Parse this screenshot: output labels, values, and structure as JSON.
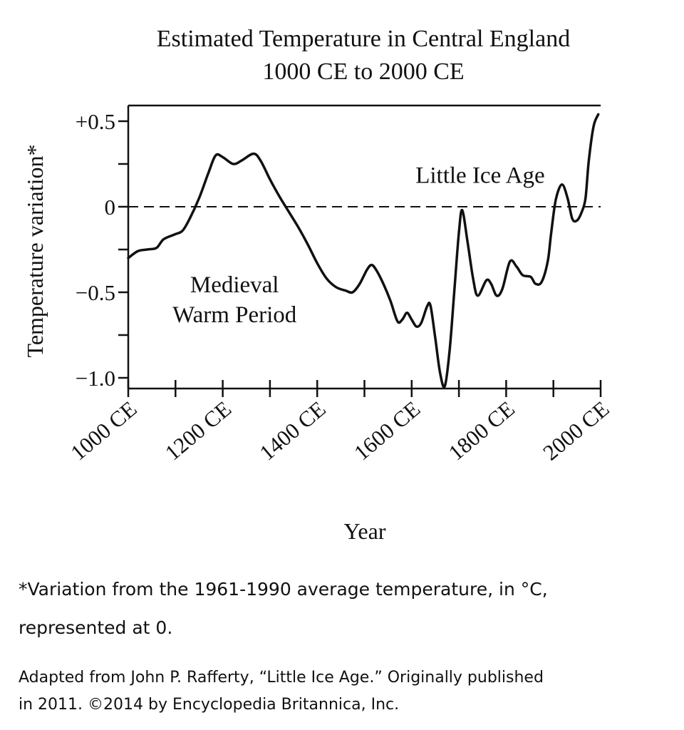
{
  "chart_data": {
    "type": "line",
    "title": "Estimated Temperature in Central England",
    "subtitle": "1000 CE to 2000 CE",
    "xlabel": "Year",
    "ylabel": "Temperature variation*",
    "xlim": [
      1000,
      2000
    ],
    "ylim": [
      -1.05,
      0.55
    ],
    "x_ticks": [
      1000,
      1200,
      1400,
      1600,
      1800,
      2000
    ],
    "x_tick_labels": [
      "1000 CE",
      "1200 CE",
      "1400 CE",
      "1600 CE",
      "1800 CE",
      "2000 CE"
    ],
    "y_ticks": [
      0.5,
      0,
      -0.5,
      -1.0
    ],
    "y_tick_labels": [
      "+0.5",
      "0",
      "−0.5",
      "−1.0"
    ],
    "reference_line": {
      "y": 0,
      "style": "dashed"
    },
    "annotations": [
      {
        "lines": [
          "Medieval",
          "Warm Period"
        ],
        "x": 1225,
        "y": -0.45
      },
      {
        "lines": [
          "Little Ice Age"
        ],
        "x": 1745,
        "y": 0.19
      }
    ],
    "series": [
      {
        "values": [
          [
            1000,
            -0.3
          ],
          [
            1020,
            -0.26
          ],
          [
            1040,
            -0.25
          ],
          [
            1060,
            -0.24
          ],
          [
            1075,
            -0.19
          ],
          [
            1100,
            -0.16
          ],
          [
            1115,
            -0.14
          ],
          [
            1130,
            -0.07
          ],
          [
            1150,
            0.05
          ],
          [
            1170,
            0.2
          ],
          [
            1185,
            0.3
          ],
          [
            1200,
            0.29
          ],
          [
            1222,
            0.25
          ],
          [
            1240,
            0.27
          ],
          [
            1265,
            0.31
          ],
          [
            1280,
            0.27
          ],
          [
            1300,
            0.16
          ],
          [
            1320,
            0.06
          ],
          [
            1340,
            -0.03
          ],
          [
            1360,
            -0.12
          ],
          [
            1380,
            -0.22
          ],
          [
            1400,
            -0.33
          ],
          [
            1420,
            -0.42
          ],
          [
            1440,
            -0.47
          ],
          [
            1460,
            -0.49
          ],
          [
            1475,
            -0.5
          ],
          [
            1490,
            -0.45
          ],
          [
            1505,
            -0.37
          ],
          [
            1515,
            -0.34
          ],
          [
            1525,
            -0.37
          ],
          [
            1540,
            -0.45
          ],
          [
            1555,
            -0.55
          ],
          [
            1570,
            -0.67
          ],
          [
            1580,
            -0.66
          ],
          [
            1590,
            -0.62
          ],
          [
            1600,
            -0.66
          ],
          [
            1610,
            -0.7
          ],
          [
            1620,
            -0.68
          ],
          [
            1633,
            -0.58
          ],
          [
            1640,
            -0.58
          ],
          [
            1650,
            -0.77
          ],
          [
            1660,
            -0.97
          ],
          [
            1670,
            -1.05
          ],
          [
            1680,
            -0.85
          ],
          [
            1690,
            -0.5
          ],
          [
            1700,
            -0.15
          ],
          [
            1707,
            -0.02
          ],
          [
            1718,
            -0.2
          ],
          [
            1730,
            -0.42
          ],
          [
            1740,
            -0.52
          ],
          [
            1758,
            -0.43
          ],
          [
            1768,
            -0.45
          ],
          [
            1780,
            -0.52
          ],
          [
            1792,
            -0.48
          ],
          [
            1808,
            -0.32
          ],
          [
            1822,
            -0.35
          ],
          [
            1835,
            -0.4
          ],
          [
            1852,
            -0.41
          ],
          [
            1862,
            -0.45
          ],
          [
            1875,
            -0.44
          ],
          [
            1888,
            -0.32
          ],
          [
            1895,
            -0.16
          ],
          [
            1905,
            0.04
          ],
          [
            1918,
            0.13
          ],
          [
            1930,
            0.05
          ],
          [
            1940,
            -0.07
          ],
          [
            1950,
            -0.08
          ],
          [
            1960,
            -0.03
          ],
          [
            1968,
            0.05
          ],
          [
            1975,
            0.27
          ],
          [
            1985,
            0.47
          ],
          [
            1995,
            0.54
          ]
        ]
      }
    ]
  },
  "footnote": {
    "line1": "*Variation from the 1961-1990 average temperature, in °C,",
    "line2": "represented at 0."
  },
  "credit": {
    "line1": "Adapted from John P. Rafferty, “Little Ice Age.” Originally published",
    "line2": "in 2011. ©2014 by Encyclopedia Britannica, Inc."
  }
}
